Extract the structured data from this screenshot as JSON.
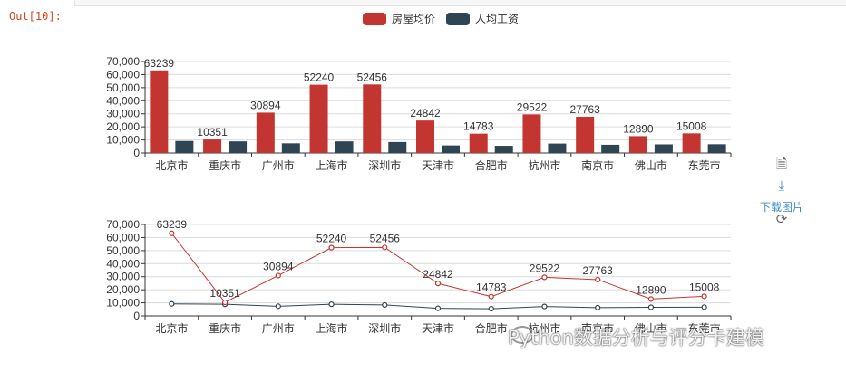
{
  "cell": {
    "prompt": "Out[10]:"
  },
  "toolbox": {
    "download_label": "下载图片"
  },
  "watermark": {
    "text": "Python数据分析与评分卡建模"
  },
  "colors": {
    "house_price": "#c23531",
    "salary": "#2f4554"
  },
  "chart_data": [
    {
      "type": "bar",
      "categories": [
        "北京市",
        "重庆市",
        "广州市",
        "上海市",
        "深圳市",
        "天津市",
        "合肥市",
        "杭州市",
        "南京市",
        "佛山市",
        "东莞市"
      ],
      "series": [
        {
          "name": "房屋均价",
          "values": [
            63239,
            10351,
            30894,
            52240,
            52456,
            24842,
            14783,
            29522,
            27763,
            12890,
            15008
          ],
          "data_labels": true
        },
        {
          "name": "人均工资",
          "values": [
            9200,
            8900,
            7400,
            8900,
            8400,
            5800,
            5500,
            7200,
            6300,
            6600,
            6700
          ],
          "data_labels": false
        }
      ],
      "yticks": [
        "0",
        "10,000",
        "20,000",
        "30,000",
        "40,000",
        "50,000",
        "60,000",
        "70,000"
      ],
      "ylim": [
        0,
        70000
      ],
      "legend": "top-center",
      "grid": true
    },
    {
      "type": "line",
      "categories": [
        "北京市",
        "重庆市",
        "广州市",
        "上海市",
        "深圳市",
        "天津市",
        "合肥市",
        "杭州市",
        "南京市",
        "佛山市",
        "东莞市"
      ],
      "series": [
        {
          "name": "房屋均价",
          "values": [
            63239,
            10351,
            30894,
            52240,
            52456,
            24842,
            14783,
            29522,
            27763,
            12890,
            15008
          ],
          "data_labels": true
        },
        {
          "name": "人均工资",
          "values": [
            9200,
            8900,
            7400,
            8900,
            8400,
            5800,
            5500,
            7200,
            6300,
            6600,
            6700
          ],
          "data_labels": false
        }
      ],
      "yticks": [
        "0",
        "10,000",
        "20,000",
        "30,000",
        "40,000",
        "50,000",
        "60,000",
        "70,000"
      ],
      "ylim": [
        0,
        70000
      ],
      "grid": true
    }
  ]
}
